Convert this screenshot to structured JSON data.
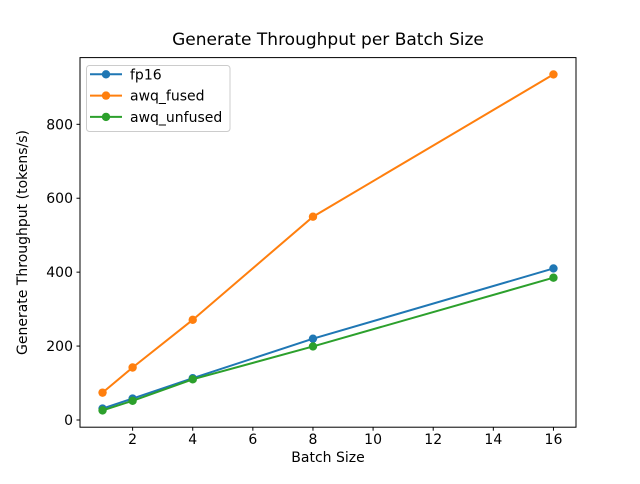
{
  "figure": {
    "background": "#ffffff",
    "text_color": "#000000",
    "spine_color": "#000000",
    "legend_border_color": "#cccccc"
  },
  "chart_data": {
    "type": "line",
    "title": "Generate Throughput per Batch Size",
    "xlabel": "Batch Size",
    "ylabel": "Generate Throughput (tokens/s)",
    "x": [
      1,
      2,
      4,
      8,
      16
    ],
    "series": [
      {
        "name": "fp16",
        "color": "#1f77b4",
        "marker": "o",
        "values": [
          31,
          58,
          113,
          220,
          410
        ]
      },
      {
        "name": "awq_fused",
        "color": "#ff7f0e",
        "marker": "o",
        "values": [
          74,
          142,
          271,
          550,
          935
        ]
      },
      {
        "name": "awq_unfused",
        "color": "#2ca02c",
        "marker": "o",
        "values": [
          26,
          52,
          110,
          199,
          385
        ]
      }
    ],
    "xticks": [
      2,
      4,
      6,
      8,
      10,
      12,
      14,
      16
    ],
    "yticks": [
      0,
      200,
      400,
      600,
      800
    ],
    "xlim": [
      0.25,
      16.75
    ],
    "ylim": [
      -19.5,
      980.5
    ],
    "grid": false,
    "legend": {
      "position": "upper left",
      "entries": [
        "fp16",
        "awq_fused",
        "awq_unfused"
      ]
    }
  }
}
